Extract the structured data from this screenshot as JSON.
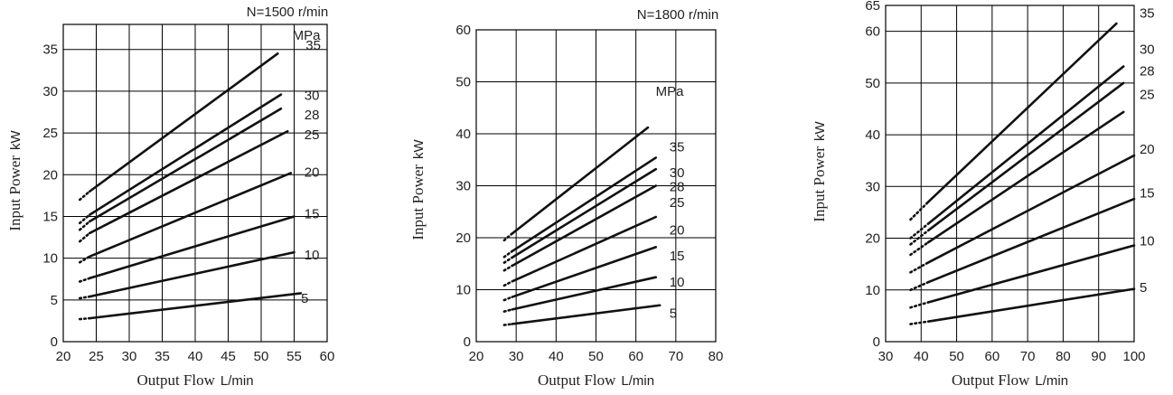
{
  "chart_data": [
    {
      "type": "line",
      "title": "N=1500 r/min",
      "xlabel": "Output Flow",
      "xunit": "L/min",
      "ylabel": "Input Power",
      "yunit": "kW",
      "xlim": [
        20,
        60
      ],
      "ylim": [
        0,
        38
      ],
      "xticks": [
        20,
        25,
        30,
        35,
        40,
        45,
        50,
        55,
        60
      ],
      "yticks": [
        0,
        5,
        10,
        15,
        20,
        25,
        30,
        35
      ],
      "grid": true,
      "series_unit": "MPa",
      "series": [
        {
          "name": "35",
          "x": [
            22.5,
            24,
            52.5
          ],
          "y": [
            17,
            18,
            34.5
          ]
        },
        {
          "name": "30",
          "x": [
            22.5,
            24,
            53
          ],
          "y": [
            14.2,
            15.2,
            29.6
          ]
        },
        {
          "name": "28",
          "x": [
            22.5,
            24,
            53
          ],
          "y": [
            13.4,
            14.4,
            27.9
          ]
        },
        {
          "name": "25",
          "x": [
            22.5,
            24,
            54
          ],
          "y": [
            12,
            13,
            25.2
          ]
        },
        {
          "name": "20",
          "x": [
            22.5,
            24,
            54.5
          ],
          "y": [
            9.5,
            10.2,
            20.2
          ]
        },
        {
          "name": "15",
          "x": [
            22.5,
            24,
            55
          ],
          "y": [
            7.2,
            7.6,
            15
          ]
        },
        {
          "name": "10",
          "x": [
            22.5,
            24,
            55
          ],
          "y": [
            5.2,
            5.4,
            10.7
          ]
        },
        {
          "name": "5",
          "x": [
            22.5,
            24,
            56
          ],
          "y": [
            2.7,
            2.8,
            5.8
          ]
        }
      ]
    },
    {
      "type": "line",
      "title": "N=1800 r/min",
      "xlabel": "Output Flow",
      "xunit": "L/min",
      "ylabel": "Input Power",
      "yunit": "kW",
      "xlim": [
        20,
        80
      ],
      "ylim": [
        0,
        60
      ],
      "xticks": [
        20,
        30,
        40,
        50,
        60,
        70,
        80
      ],
      "yticks": [
        0,
        10,
        20,
        30,
        40,
        50,
        60
      ],
      "grid": true,
      "series_unit": "MPa",
      "series": [
        {
          "name": "35",
          "x": [
            27,
            29,
            63
          ],
          "y": [
            19.5,
            20.8,
            41.2
          ]
        },
        {
          "name": "30",
          "x": [
            27,
            29,
            65
          ],
          "y": [
            16.3,
            17.4,
            35.4
          ]
        },
        {
          "name": "28",
          "x": [
            27,
            29,
            65
          ],
          "y": [
            15.2,
            16.2,
            33.2
          ]
        },
        {
          "name": "25",
          "x": [
            27,
            29,
            65
          ],
          "y": [
            13.7,
            14.6,
            30
          ]
        },
        {
          "name": "20",
          "x": [
            27,
            29,
            65
          ],
          "y": [
            10.8,
            11.6,
            24
          ]
        },
        {
          "name": "15",
          "x": [
            27,
            29,
            65
          ],
          "y": [
            8,
            8.6,
            18.2
          ]
        },
        {
          "name": "10",
          "x": [
            27,
            29,
            65
          ],
          "y": [
            5.8,
            6.2,
            12.4
          ]
        },
        {
          "name": "5",
          "x": [
            27,
            29,
            66
          ],
          "y": [
            3.2,
            3.4,
            7
          ]
        }
      ]
    },
    {
      "type": "line",
      "title": "",
      "xlabel": "Output Flow",
      "xunit": "L/min",
      "ylabel": "Input Power",
      "yunit": "kW",
      "xlim": [
        30,
        100
      ],
      "ylim": [
        0,
        65
      ],
      "xticks": [
        30,
        40,
        50,
        60,
        70,
        80,
        90,
        100
      ],
      "yticks": [
        0,
        10,
        20,
        30,
        40,
        50,
        60,
        65
      ],
      "grid": true,
      "series_unit": "",
      "series": [
        {
          "name": "35",
          "x": [
            37,
            42,
            95
          ],
          "y": [
            23.6,
            27,
            61.5
          ]
        },
        {
          "name": "30",
          "x": [
            37,
            42,
            97
          ],
          "y": [
            20,
            22.8,
            53.2
          ]
        },
        {
          "name": "28",
          "x": [
            37,
            42,
            97
          ],
          "y": [
            18.8,
            21.5,
            50
          ]
        },
        {
          "name": "25",
          "x": [
            37,
            42,
            97
          ],
          "y": [
            16.8,
            19.2,
            44.4
          ]
        },
        {
          "name": "20",
          "x": [
            37,
            42,
            100
          ],
          "y": [
            13.4,
            15.3,
            36
          ]
        },
        {
          "name": "15",
          "x": [
            37,
            42,
            100
          ],
          "y": [
            10,
            11.5,
            27.6
          ]
        },
        {
          "name": "10",
          "x": [
            37,
            42,
            100
          ],
          "y": [
            6.6,
            7.6,
            18.6
          ]
        },
        {
          "name": "5",
          "x": [
            37,
            42,
            100
          ],
          "y": [
            3.4,
            3.9,
            10.2
          ]
        }
      ]
    }
  ]
}
